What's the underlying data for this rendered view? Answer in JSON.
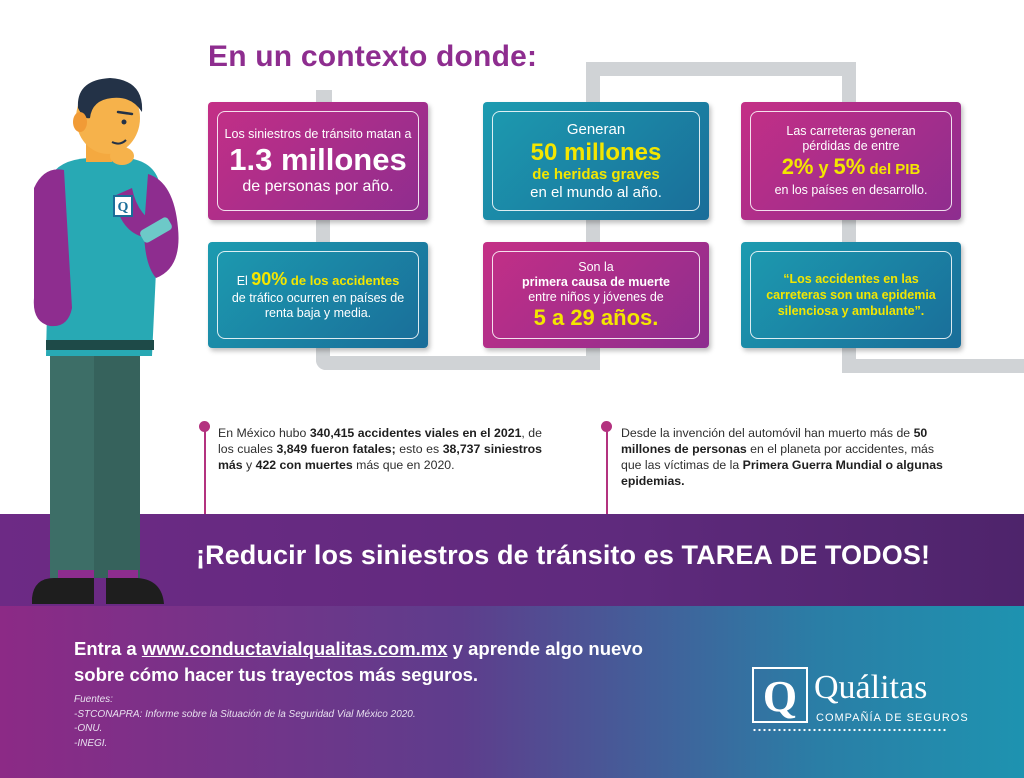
{
  "heading": "En un contexto donde:",
  "cards": [
    {
      "line1": "Los siniestros de tránsito matan a",
      "highlight": "1.3 millones",
      "line2": "de personas por año."
    },
    {
      "line1": "Generan",
      "highlight": "50 millones",
      "highlight2": "de heridas graves",
      "line2": "en el mundo al año."
    },
    {
      "line1": "Las carreteras generan",
      "line1b": "pérdidas de entre",
      "highlight_a": "2%",
      "joiner": " y ",
      "highlight_b": "5%",
      "highlight_c": " del PIB",
      "line2": "en los países en desarrollo."
    },
    {
      "prefix": "El ",
      "highlight": "90%",
      "highlight2": " de los accidentes",
      "line2": "de tráfico ocurren en países de",
      "line3": "renta baja y media."
    },
    {
      "line1": "Son la",
      "bold1": "primera causa de muerte",
      "line2": "entre niños y jóvenes de",
      "highlight": "5 a 29 años."
    },
    {
      "quote1": "“Los accidentes en las",
      "quote2": "carreteras son una epidemia",
      "quote3": "silenciosa y ambulante”."
    }
  ],
  "stats": {
    "left": {
      "t1": "En México hubo ",
      "b1": "340,415 accidentes viales en el 2021",
      "t2": ", de los cuales ",
      "b2": "3,849 fueron fatales;",
      "t3": " esto es ",
      "b3": "38,737 siniestros más",
      "t4": " y ",
      "b4": "422 con muertes",
      "t5": " más que en 2020."
    },
    "right": {
      "t1": "Desde la invención del automóvil han muerto más de ",
      "b1": "50 millones de personas",
      "t2": " en el planeta por accidentes, más que las víctimas de la ",
      "b2": "Primera Guerra Mundial o algunas epidemias."
    }
  },
  "banner": "¡Reducir los siniestros de tránsito es TAREA DE TODOS!",
  "cta": {
    "prefix": "Entra a ",
    "url": "www.conductavialqualitas.com.mx",
    "suffix": " y aprende algo nuevo sobre cómo hacer tus trayectos más seguros."
  },
  "sources": {
    "title": "Fuentes:",
    "items": [
      "-STCONAPRA: Informe sobre la Situación de la Seguridad Vial México 2020.",
      "-ONU.",
      "-INEGI."
    ]
  },
  "logo": {
    "name": "Quálitas",
    "subtitle": "COMPAÑÍA DE SEGUROS",
    "mark": "Q",
    "badge_letter": "Q"
  },
  "colors": {
    "purple": "#8e2d8f",
    "pink": "#c42f86",
    "teal": "#1c9bb0",
    "yellow": "#f3e600"
  }
}
